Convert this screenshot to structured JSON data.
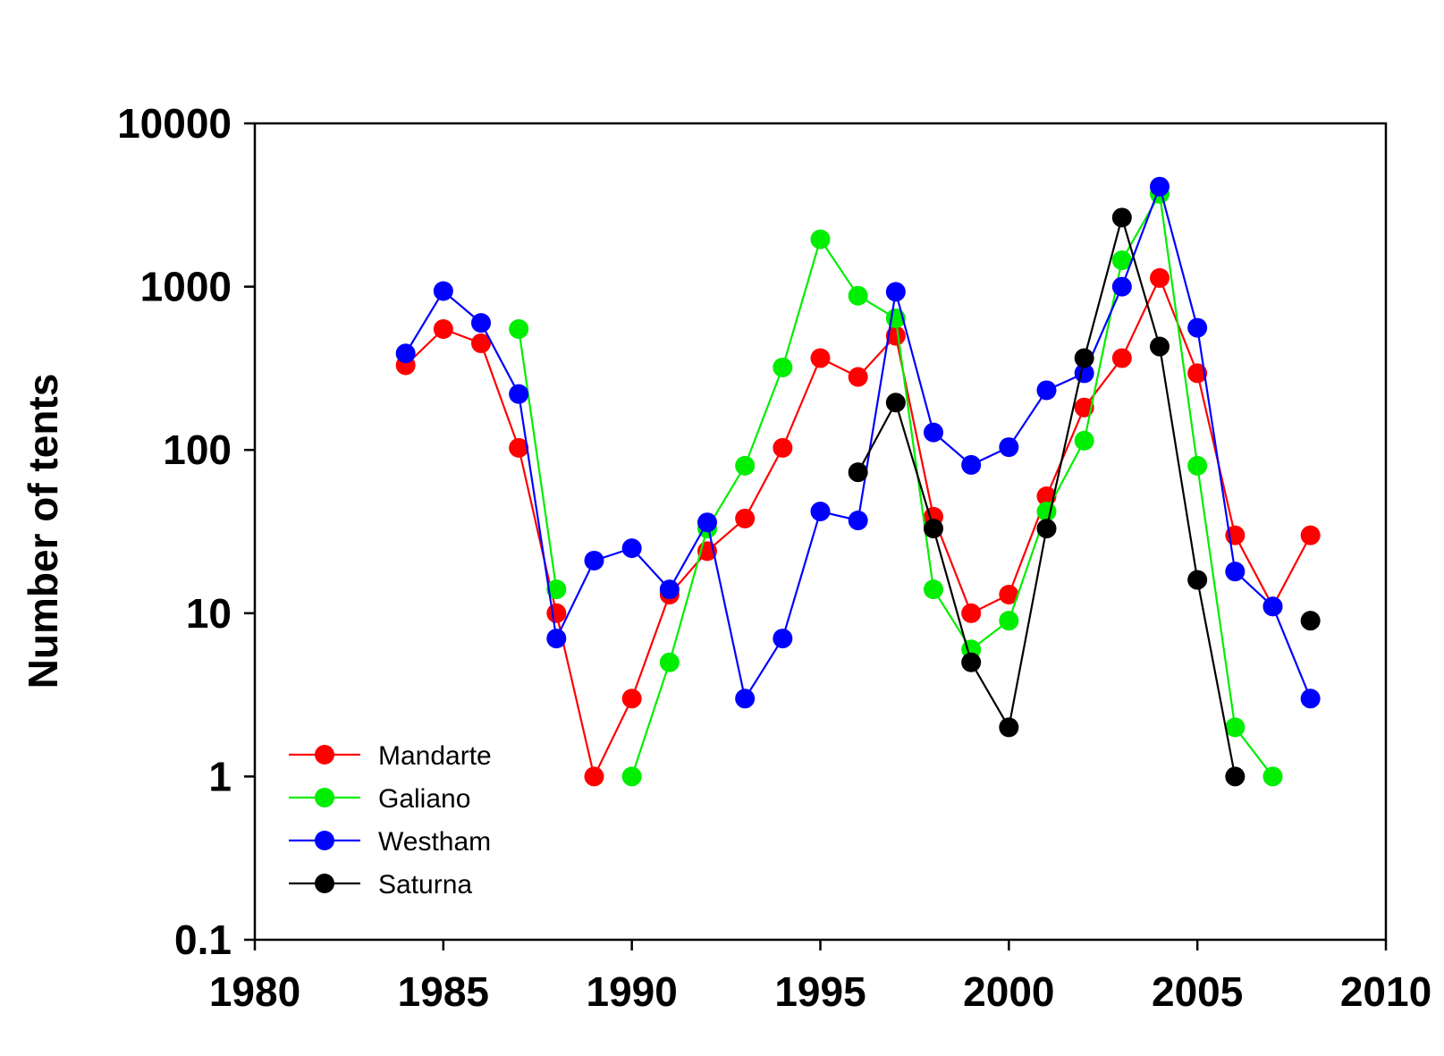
{
  "chart_data": {
    "type": "line",
    "title": "",
    "xlabel": "",
    "ylabel": "Number of tents",
    "xlim": [
      1980,
      2010
    ],
    "ylim": [
      0.1,
      10000
    ],
    "y_scale": "log",
    "x_ticks": [
      "1980",
      "1985",
      "1990",
      "1995",
      "2000",
      "2005",
      "2010"
    ],
    "y_ticks": [
      "0.1",
      "1",
      "10",
      "100",
      "1000",
      "10000"
    ],
    "grid": false,
    "legend_position": "bottom-left",
    "series": [
      {
        "name": "Mandarte",
        "color": "#ff0000",
        "points": [
          [
            1984,
            330
          ],
          [
            1985,
            550
          ],
          [
            1986,
            450
          ],
          [
            1987,
            103
          ],
          [
            1988,
            10
          ],
          [
            1989,
            1
          ],
          [
            1990,
            3
          ],
          [
            1991,
            13
          ],
          [
            1992,
            24
          ],
          [
            1993,
            38
          ],
          [
            1994,
            103
          ],
          [
            1995,
            365
          ],
          [
            1996,
            280
          ],
          [
            1997,
            500
          ],
          [
            1998,
            39
          ],
          [
            1999,
            10
          ],
          [
            2000,
            13
          ],
          [
            2001,
            52
          ],
          [
            2002,
            182
          ],
          [
            2003,
            365
          ],
          [
            2004,
            1130
          ],
          [
            2005,
            295
          ],
          [
            2006,
            30
          ],
          [
            2007,
            11
          ],
          [
            2008,
            30
          ]
        ]
      },
      {
        "name": "Galiano",
        "color": "#00ee00",
        "points": [
          [
            1987,
            550
          ],
          [
            1988,
            14
          ],
          null,
          [
            1990,
            1
          ],
          [
            1991,
            5
          ],
          [
            1992,
            33
          ],
          [
            1993,
            80
          ],
          [
            1994,
            320
          ],
          [
            1995,
            1950
          ],
          [
            1996,
            880
          ],
          [
            1997,
            640
          ],
          [
            1998,
            14
          ],
          [
            1999,
            6
          ],
          [
            2000,
            9
          ],
          [
            2001,
            42
          ],
          [
            2002,
            114
          ],
          [
            2003,
            1450
          ],
          [
            2004,
            3700
          ],
          [
            2005,
            80
          ],
          [
            2006,
            2
          ],
          [
            2007,
            1
          ]
        ]
      },
      {
        "name": "Westham",
        "color": "#0000ff",
        "points": [
          [
            1984,
            390
          ],
          [
            1985,
            940
          ],
          [
            1986,
            600
          ],
          [
            1987,
            220
          ],
          [
            1988,
            7
          ],
          [
            1989,
            21
          ],
          [
            1990,
            25
          ],
          [
            1991,
            14
          ],
          [
            1992,
            36
          ],
          [
            1993,
            3
          ],
          [
            1994,
            7
          ],
          [
            1995,
            42
          ],
          [
            1996,
            37
          ],
          [
            1997,
            930
          ],
          [
            1998,
            128
          ],
          [
            1999,
            81
          ],
          [
            2000,
            104
          ],
          [
            2001,
            232
          ],
          [
            2002,
            295
          ],
          [
            2003,
            1000
          ],
          [
            2004,
            4100
          ],
          [
            2005,
            560
          ],
          [
            2006,
            18
          ],
          [
            2007,
            11
          ],
          [
            2008,
            3
          ]
        ]
      },
      {
        "name": "Saturna",
        "color": "#000000",
        "points": [
          [
            1996,
            73
          ],
          [
            1997,
            195
          ],
          [
            1998,
            33
          ],
          [
            1999,
            5
          ],
          [
            2000,
            2
          ],
          [
            2001,
            33
          ],
          [
            2002,
            365
          ],
          [
            2003,
            2650
          ],
          [
            2004,
            430
          ],
          [
            2005,
            16
          ],
          [
            2006,
            1
          ],
          null,
          [
            2008,
            9
          ]
        ]
      }
    ]
  }
}
